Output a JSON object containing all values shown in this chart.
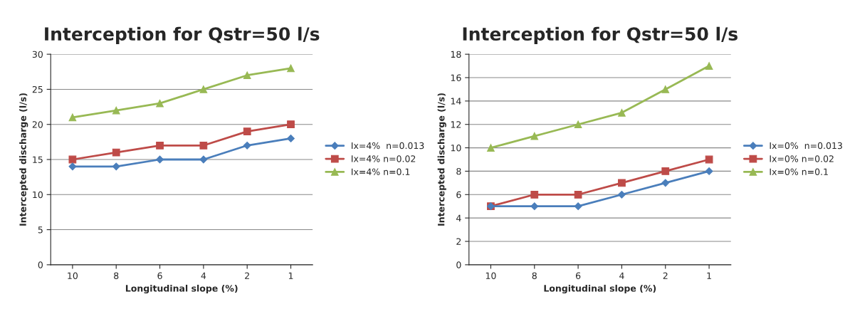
{
  "chart_data": [
    {
      "type": "line",
      "title": "Interception for Qstr=50 l/s",
      "xlabel": "Longitudinal slope (%)",
      "ylabel": "Intercepted discharge (l/s)",
      "categories": [
        "10",
        "8",
        "6",
        "4",
        "2",
        "1"
      ],
      "series": [
        {
          "name": "Ix=4%  n=0.013",
          "color": "#4a7ebb",
          "marker": "diamond",
          "values": [
            14,
            14,
            15,
            15,
            17,
            18
          ]
        },
        {
          "name": "Ix=4% n=0.02",
          "color": "#be4b48",
          "marker": "square",
          "values": [
            15,
            16,
            17,
            17,
            19,
            20
          ]
        },
        {
          "name": "Ix=4% n=0.1",
          "color": "#98b954",
          "marker": "triangle",
          "values": [
            21,
            22,
            23,
            25,
            27,
            28
          ]
        }
      ],
      "ylim": [
        0,
        30
      ],
      "yticks": [
        0,
        5,
        10,
        15,
        20,
        25,
        30
      ],
      "grid": "y",
      "legend": "right"
    },
    {
      "type": "line",
      "title": "Interception for Qstr=50 l/s",
      "xlabel": "Longitudinal slope (%)",
      "ylabel": "Intercepted discharge (l/s)",
      "categories": [
        "10",
        "8",
        "6",
        "4",
        "2",
        "1"
      ],
      "series": [
        {
          "name": "Ix=0%  n=0.013",
          "color": "#4a7ebb",
          "marker": "diamond",
          "values": [
            5,
            5,
            5,
            6,
            7,
            8
          ]
        },
        {
          "name": "Ix=0% n=0.02",
          "color": "#be4b48",
          "marker": "square",
          "values": [
            5,
            6,
            6,
            7,
            8,
            9
          ]
        },
        {
          "name": "Ix=0% n=0.1",
          "color": "#98b954",
          "marker": "triangle",
          "values": [
            10,
            11,
            12,
            13,
            15,
            17
          ]
        }
      ],
      "ylim": [
        0,
        18
      ],
      "yticks": [
        0,
        2,
        4,
        6,
        8,
        10,
        12,
        14,
        16,
        18
      ],
      "grid": "y",
      "legend": "right"
    }
  ]
}
